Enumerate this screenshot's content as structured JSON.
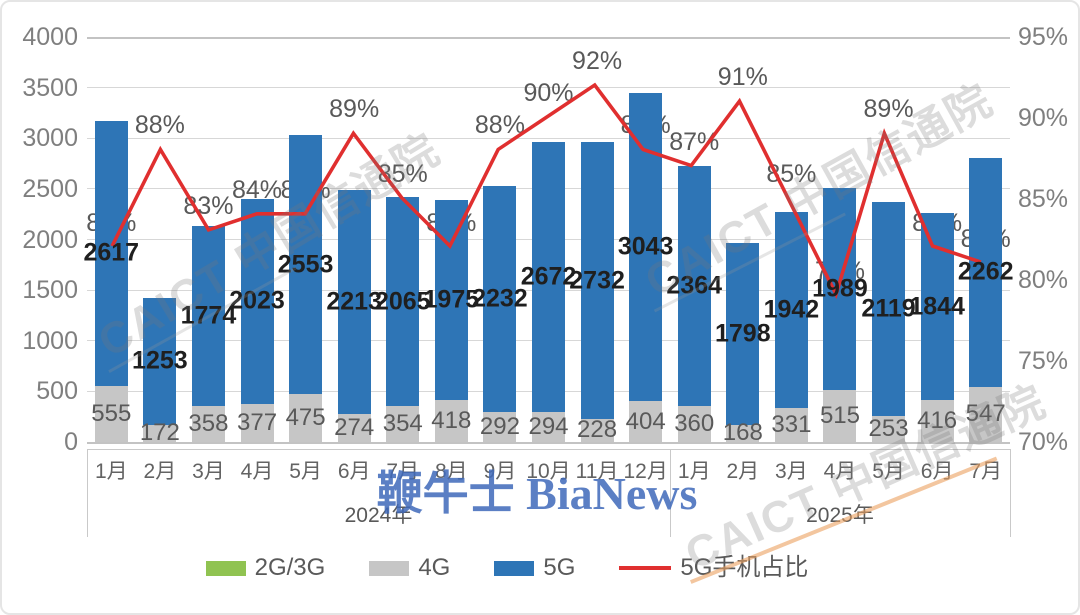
{
  "watermarks": {
    "caict": "CAICT 中国信通院",
    "bianews": "鞭牛士 BiaNews"
  },
  "chart_data": {
    "type": "bar",
    "subtype": "stacked-columns-with-line",
    "title": "",
    "categories": [
      "1月",
      "2月",
      "3月",
      "4月",
      "5月",
      "6月",
      "7月",
      "8月",
      "9月",
      "10月",
      "11月",
      "12月",
      "1月",
      "2月",
      "3月",
      "4月",
      "5月",
      "6月",
      "7月"
    ],
    "year_groups": [
      {
        "label": "2024年",
        "months": 12
      },
      {
        "label": "2025年",
        "months": 7
      }
    ],
    "series": [
      {
        "name": "2G/3G",
        "type": "bar",
        "color": "#90C351",
        "values": [
          0,
          0,
          0,
          0,
          0,
          0,
          0,
          0,
          0,
          0,
          0,
          0,
          0,
          0,
          0,
          0,
          0,
          0,
          0
        ]
      },
      {
        "name": "4G",
        "type": "bar",
        "color": "#C6C6C6",
        "values": [
          555,
          172,
          358,
          377,
          475,
          274,
          354,
          418,
          292,
          294,
          228,
          404,
          360,
          168,
          331,
          515,
          253,
          416,
          547
        ]
      },
      {
        "name": "5G",
        "type": "bar",
        "color": "#2E75B6",
        "values": [
          2617,
          1253,
          1774,
          2023,
          2553,
          2213,
          2065,
          1975,
          2232,
          2672,
          2732,
          3043,
          2364,
          1798,
          1942,
          1989,
          2119,
          1844,
          2262
        ]
      }
    ],
    "line_series": {
      "name": "5G手机占比",
      "type": "line",
      "color": "#E02F2F",
      "values_pct": [
        82,
        88,
        83,
        84,
        84,
        89,
        85,
        82,
        88,
        90,
        92,
        88,
        87,
        91,
        85,
        79,
        89,
        82,
        81
      ],
      "labels": [
        "82%",
        "88%",
        "83%",
        "84%",
        "84%",
        "89%",
        "85%",
        "82%",
        "88%",
        "90%",
        "92%",
        "88%",
        "87%",
        "91%",
        "85%",
        "79%",
        "89%",
        "82%",
        "81%"
      ]
    },
    "left_axis": {
      "min": 0,
      "max": 4000,
      "step": 500,
      "ticks": [
        "4000",
        "3500",
        "3000",
        "2500",
        "2000",
        "1500",
        "1000",
        "500",
        "0"
      ]
    },
    "right_axis": {
      "min": 70,
      "max": 95,
      "step": 5,
      "ticks": [
        "95%",
        "90%",
        "85%",
        "80%",
        "75%",
        "70%"
      ]
    },
    "legend": [
      {
        "label": "2G/3G",
        "color": "#90C351",
        "shape": "swatch"
      },
      {
        "label": "4G",
        "color": "#C6C6C6",
        "shape": "swatch"
      },
      {
        "label": "5G",
        "color": "#2E75B6",
        "shape": "swatch"
      },
      {
        "label": "5G手机占比",
        "color": "#E02F2F",
        "shape": "line"
      }
    ],
    "grid": true,
    "legend_position": "bottom"
  }
}
